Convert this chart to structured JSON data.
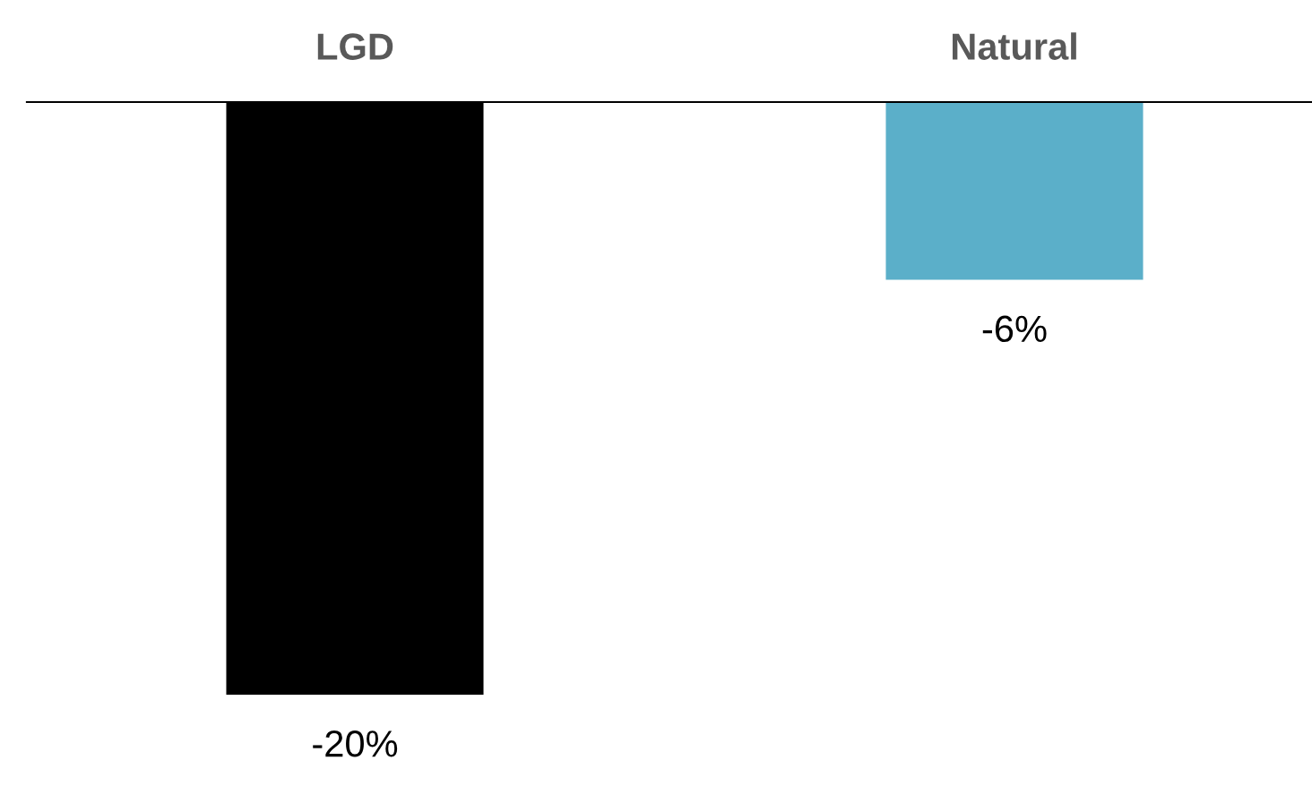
{
  "chart_data": {
    "type": "bar",
    "categories": [
      "LGD",
      "Natural"
    ],
    "values": [
      -20,
      -6
    ],
    "colors": [
      "#000000",
      "#5bafc9"
    ],
    "value_labels": [
      "-20%",
      "-6%"
    ],
    "grid": false,
    "legend": false
  }
}
